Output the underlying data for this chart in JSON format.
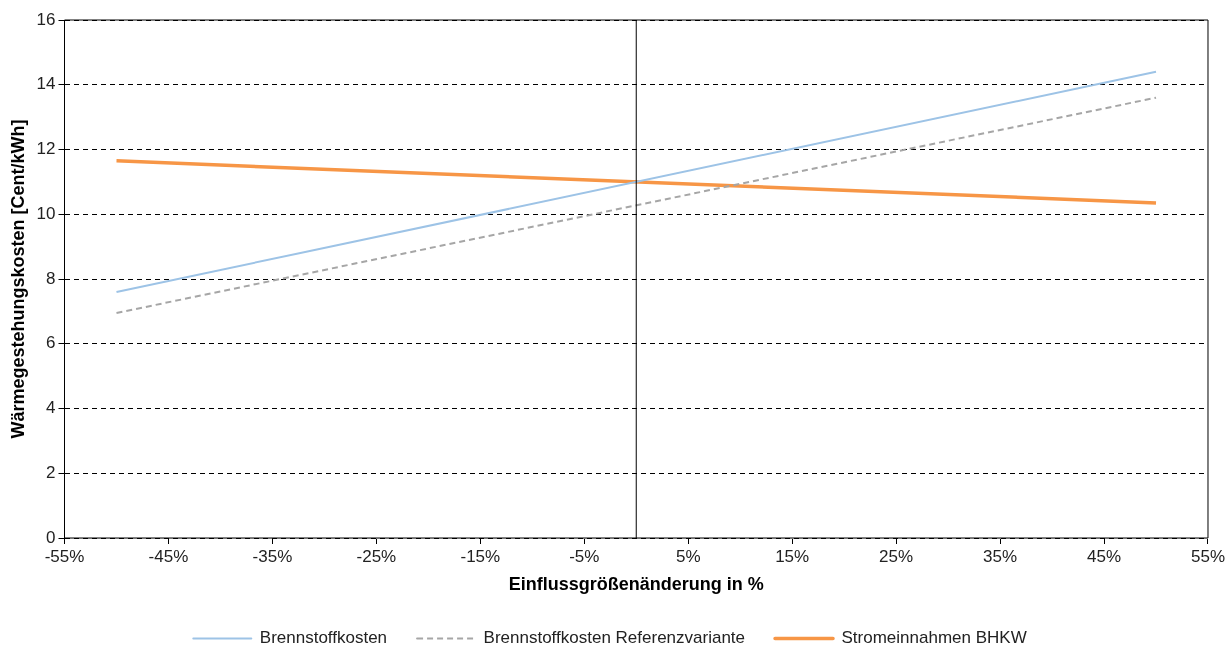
{
  "chart_data": {
    "type": "line",
    "xlabel": "Einflussgrößenänderung in %",
    "ylabel": "Wärmegestehungskosten [Cent/kWh]",
    "x": [
      -50,
      50
    ],
    "series": [
      {
        "name": "Brennstoffkosten",
        "color": "#9dc3e6",
        "values": [
          7.6,
          14.4
        ]
      },
      {
        "name": "Brennstoffkosten Referenzvariante",
        "color": "#a6a6a6",
        "values": [
          6.95,
          13.6
        ],
        "line_style": "dashed"
      },
      {
        "name": "Stromeinnahmen BHKW",
        "color": "#f79646",
        "values": [
          11.65,
          10.35
        ]
      }
    ],
    "xlim": [
      -55,
      55
    ],
    "xticks": [
      {
        "value": -55,
        "label": "-55%"
      },
      {
        "value": -45,
        "label": "-45%"
      },
      {
        "value": -35,
        "label": "-35%"
      },
      {
        "value": -25,
        "label": "-25%"
      },
      {
        "value": -15,
        "label": "-15%"
      },
      {
        "value": -5,
        "label": "-5%"
      },
      {
        "value": 5,
        "label": "5%"
      },
      {
        "value": 15,
        "label": "15%"
      },
      {
        "value": 25,
        "label": "25%"
      },
      {
        "value": 35,
        "label": "35%"
      },
      {
        "value": 45,
        "label": "45%"
      },
      {
        "value": 55,
        "label": "55%"
      }
    ],
    "ylim": [
      0,
      16
    ],
    "yticks": [
      0,
      2,
      4,
      6,
      8,
      10,
      12,
      14,
      16
    ],
    "ref_lines": [
      {
        "axis": "x",
        "value": 0,
        "color": "#000000"
      }
    ],
    "grid": "y",
    "legend": "bottom",
    "marker": "none",
    "line_style": "solid"
  }
}
